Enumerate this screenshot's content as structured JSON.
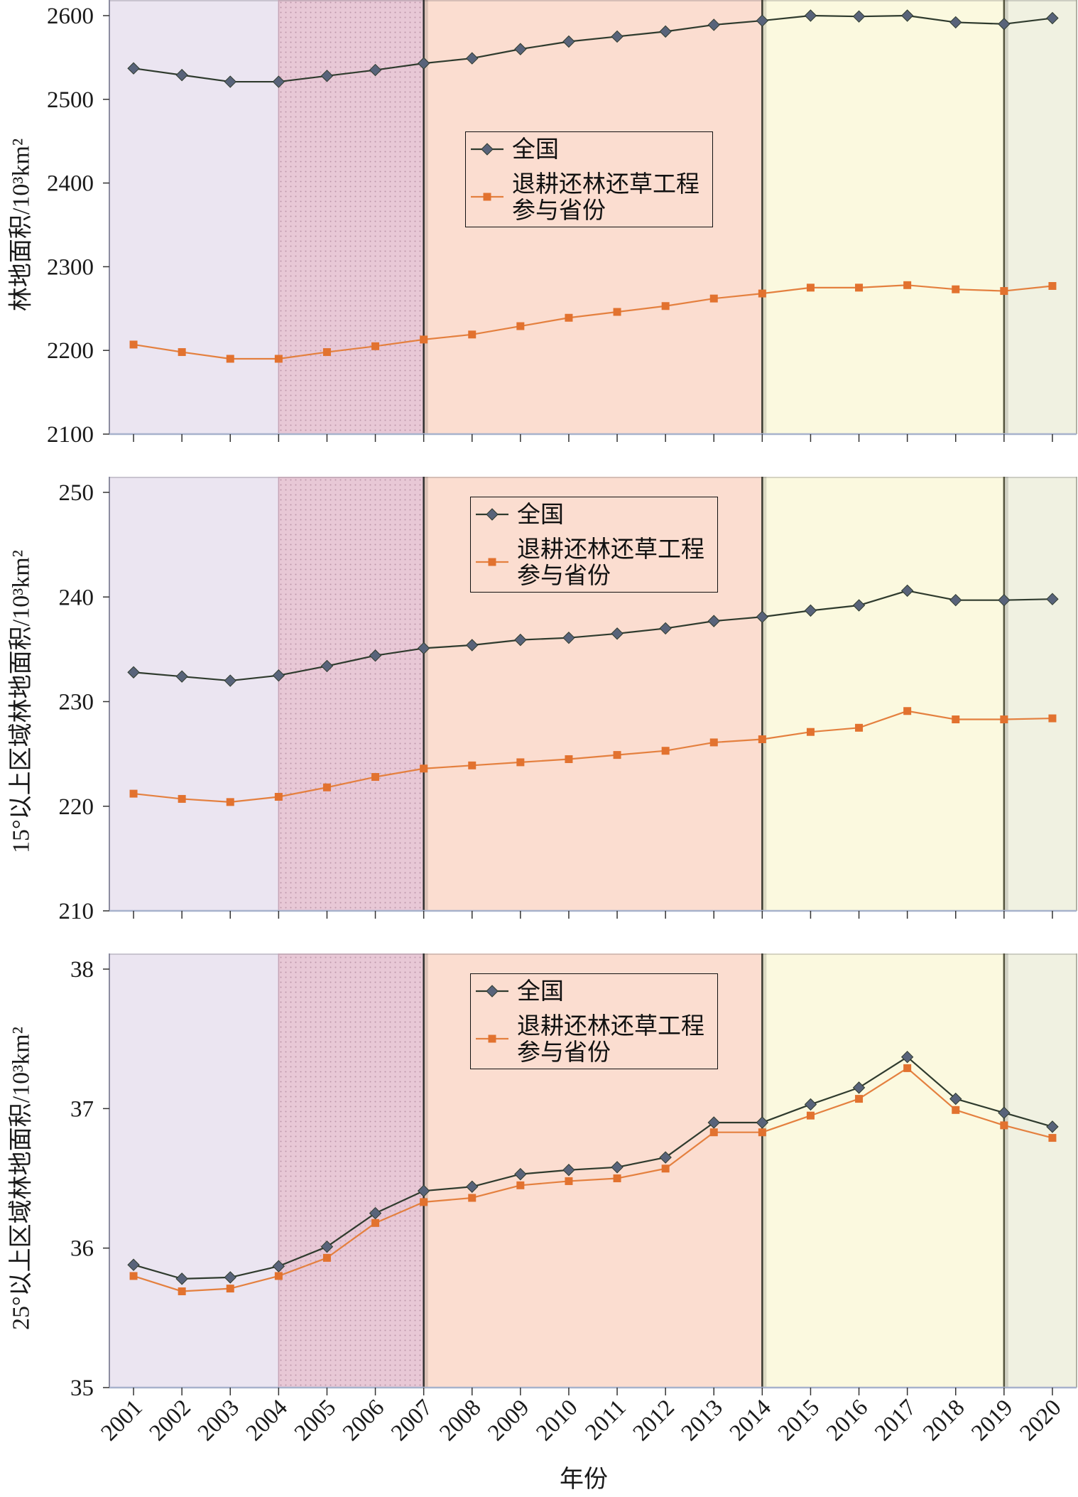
{
  "periods": [
    {
      "from": 2000.5,
      "to": 2004,
      "fill": "#EBE5F1"
    },
    {
      "from": 2004,
      "to": 2007,
      "fill": "#E8C8D6",
      "pattern": "dots"
    },
    {
      "from": 2007,
      "to": 2014,
      "fill": "#FBDDD0"
    },
    {
      "from": 2014,
      "to": 2019,
      "fill": "#FBF9DF"
    },
    {
      "from": 2019,
      "to": 2020.5,
      "fill": "#F0F1E1"
    }
  ],
  "chart_data": [
    {
      "type": "line",
      "x": [
        2001,
        2002,
        2003,
        2004,
        2005,
        2006,
        2007,
        2008,
        2009,
        2010,
        2011,
        2012,
        2013,
        2014,
        2015,
        2016,
        2017,
        2018,
        2019,
        2020
      ],
      "xlim": [
        2000.5,
        2020.5
      ],
      "show_x_tick_labels": false,
      "ylabel": "林地面积/10³km²",
      "ylim": [
        2100,
        2600
      ],
      "yticks": [
        2100,
        2200,
        2300,
        2400,
        2500,
        2600
      ],
      "grid": false,
      "legend": "center",
      "series": [
        {
          "name": "全国",
          "marker": "diamond",
          "color": "#2F3B2E",
          "marker_color": "#58637A",
          "values": [
            2537,
            2529,
            2521,
            2521,
            2528,
            2535,
            2543,
            2549,
            2560,
            2569,
            2575,
            2581,
            2589,
            2594,
            2600,
            2599,
            2600,
            2592,
            2590,
            2597
          ]
        },
        {
          "name": "退耕还林还草工程参与省份",
          "marker": "square",
          "color": "#E4803F",
          "marker_color": "#E2722F",
          "values": [
            2207,
            2198,
            2190,
            2190,
            2198,
            2205,
            2213,
            2219,
            2229,
            2239,
            2246,
            2253,
            2262,
            2268,
            2275,
            2275,
            2278,
            2273,
            2271,
            2277
          ]
        }
      ]
    },
    {
      "type": "line",
      "x": [
        2001,
        2002,
        2003,
        2004,
        2005,
        2006,
        2007,
        2008,
        2009,
        2010,
        2011,
        2012,
        2013,
        2014,
        2015,
        2016,
        2017,
        2018,
        2019,
        2020
      ],
      "xlim": [
        2000.5,
        2020.5
      ],
      "show_x_tick_labels": false,
      "ylabel": "15°以上区域林地面积/10³km²",
      "ylim": [
        210,
        250
      ],
      "yticks": [
        210,
        220,
        230,
        240,
        250
      ],
      "grid": false,
      "legend": "top-center",
      "series": [
        {
          "name": "全国",
          "marker": "diamond",
          "color": "#2F3B2E",
          "marker_color": "#58637A",
          "values": [
            232.8,
            232.4,
            232.0,
            232.5,
            233.4,
            234.4,
            235.1,
            235.4,
            235.9,
            236.1,
            236.5,
            237.0,
            237.7,
            238.1,
            238.7,
            239.2,
            240.6,
            239.7,
            239.7,
            239.8
          ]
        },
        {
          "name": "退耕还林还草工程参与省份",
          "marker": "square",
          "color": "#E4803F",
          "marker_color": "#E2722F",
          "values": [
            221.2,
            220.7,
            220.4,
            220.9,
            221.8,
            222.8,
            223.6,
            223.9,
            224.2,
            224.5,
            224.9,
            225.3,
            226.1,
            226.4,
            227.1,
            227.5,
            229.1,
            228.3,
            228.3,
            228.4
          ]
        }
      ]
    },
    {
      "type": "line",
      "x": [
        2001,
        2002,
        2003,
        2004,
        2005,
        2006,
        2007,
        2008,
        2009,
        2010,
        2011,
        2012,
        2013,
        2014,
        2015,
        2016,
        2017,
        2018,
        2019,
        2020
      ],
      "xlim": [
        2000.5,
        2020.5
      ],
      "show_x_tick_labels": true,
      "xlabel": "年份",
      "ylabel": "25°以上区域林地面积/10³km²",
      "ylim": [
        35,
        38
      ],
      "yticks": [
        35,
        36,
        37,
        38
      ],
      "grid": false,
      "legend": "top-center",
      "series": [
        {
          "name": "全国",
          "marker": "diamond",
          "color": "#2F3B2E",
          "marker_color": "#58637A",
          "values": [
            35.88,
            35.78,
            35.79,
            35.87,
            36.01,
            36.25,
            36.41,
            36.44,
            36.53,
            36.56,
            36.58,
            36.65,
            36.9,
            36.9,
            37.03,
            37.15,
            37.37,
            37.07,
            36.97,
            36.87
          ]
        },
        {
          "name": "退耕还林还草工程参与省份",
          "marker": "square",
          "color": "#E4803F",
          "marker_color": "#E2722F",
          "values": [
            35.8,
            35.69,
            35.71,
            35.8,
            35.93,
            36.18,
            36.33,
            36.36,
            36.45,
            36.48,
            36.5,
            36.57,
            36.83,
            36.83,
            36.95,
            37.07,
            37.29,
            36.99,
            36.88,
            36.79
          ]
        }
      ]
    }
  ]
}
